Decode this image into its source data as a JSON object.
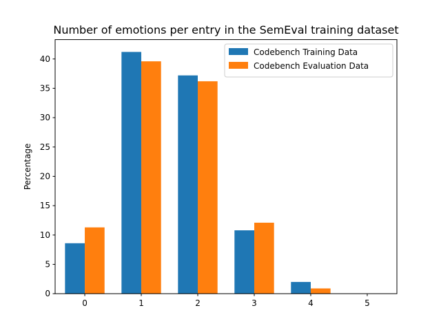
{
  "chart_data": {
    "type": "bar",
    "title": "Number of emotions per entry in the SemEval training dataset",
    "xlabel": "",
    "ylabel": "Percentage",
    "categories": [
      "0",
      "1",
      "2",
      "3",
      "4",
      "5"
    ],
    "series": [
      {
        "name": "Codebench Training Data",
        "color": "#1f77b4",
        "values": [
          8.6,
          41.2,
          37.2,
          10.8,
          2.0,
          0.0
        ]
      },
      {
        "name": "Codebench Evaluation Data",
        "color": "#ff7f0e",
        "values": [
          11.3,
          39.6,
          36.2,
          12.1,
          0.9,
          0.0
        ]
      }
    ],
    "ylim": [
      0,
      43.3
    ],
    "yticks": [
      0,
      5,
      10,
      15,
      20,
      25,
      30,
      35,
      40
    ],
    "grid": false,
    "legend_position": "top-right"
  }
}
